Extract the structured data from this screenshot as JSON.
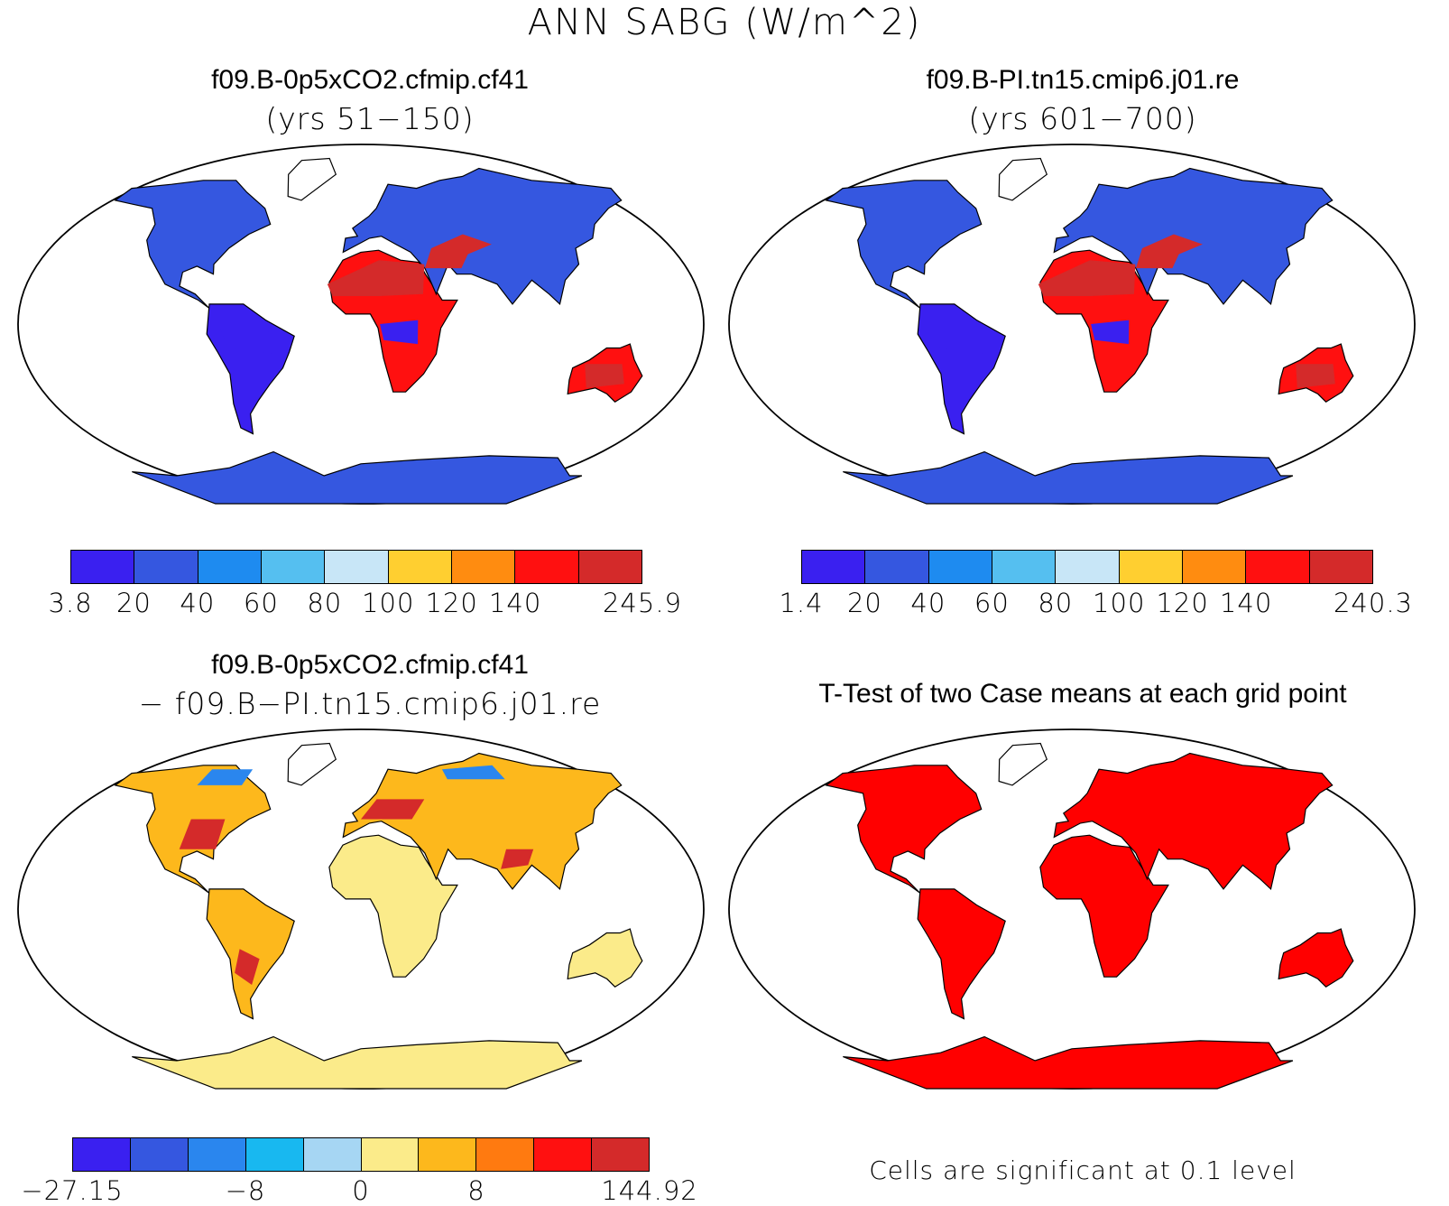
{
  "title": "ANN SABG (W/m^2)",
  "panels": [
    {
      "case": "f09.B-0p5xCO2.cfmip.cf41",
      "subtitle": "(yrs 51−150)",
      "colorbar": {
        "colors": [
          "#3a20f0",
          "#3557e0",
          "#1e8bf0",
          "#55bff0",
          "#c8e6f7",
          "#ffcf30",
          "#ff8c10",
          "#ff1010",
          "#d42a2a"
        ],
        "labels": [
          "3.8",
          "20",
          "40",
          "60",
          "80",
          "100",
          "120",
          "140",
          "245.9"
        ]
      }
    },
    {
      "case": "f09.B-PI.tn15.cmip6.j01.re",
      "subtitle": "(yrs 601−700)",
      "colorbar": {
        "colors": [
          "#3a20f0",
          "#3557e0",
          "#1e8bf0",
          "#55bff0",
          "#c8e6f7",
          "#ffcf30",
          "#ff8c10",
          "#ff1010",
          "#d42a2a"
        ],
        "labels": [
          "1.4",
          "20",
          "40",
          "60",
          "80",
          "100",
          "120",
          "140",
          "240.3"
        ]
      }
    },
    {
      "case": "f09.B-0p5xCO2.cfmip.cf41",
      "subtitle": "− f09.B−PI.tn15.cmip6.j01.re",
      "colorbar": {
        "colors": [
          "#3a20f0",
          "#3557e0",
          "#2a86ee",
          "#18b8f0",
          "#a6d6f3",
          "#fbeb8a",
          "#fdb81c",
          "#ff7a10",
          "#ff1010",
          "#d42a2a"
        ],
        "labels": [
          "−27.15",
          "−8",
          "0",
          "8",
          "144.92"
        ]
      }
    },
    {
      "title": "T-Test of two Case means at each grid point",
      "footnote": "Cells are significant at 0.1 level",
      "fill_color": "#ff0000"
    }
  ]
}
